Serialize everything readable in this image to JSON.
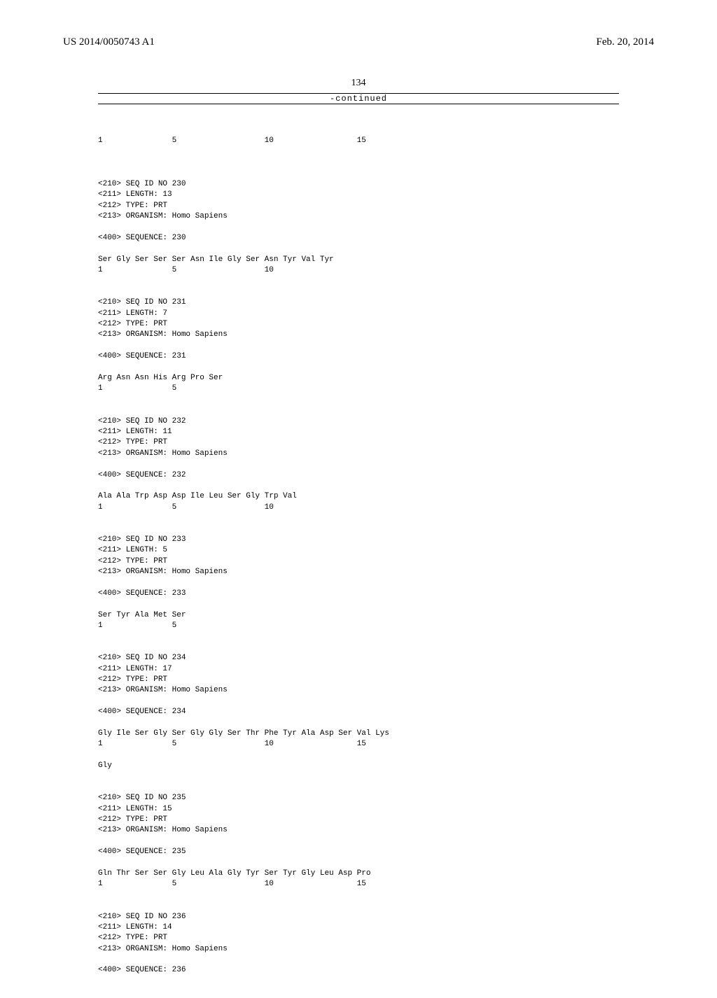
{
  "header": {
    "pub_number": "US 2014/0050743 A1",
    "pub_date": "Feb. 20, 2014"
  },
  "page_number": "134",
  "continued_label": "-continued",
  "positions_line_1": "1               5                   10                  15",
  "sequences": [
    {
      "id": "230",
      "length": "13",
      "type": "PRT",
      "organism": "Homo Sapiens",
      "seq_lines": [
        "Ser Gly Ser Ser Ser Asn Ile Gly Ser Asn Tyr Val Tyr",
        "1               5                   10"
      ]
    },
    {
      "id": "231",
      "length": "7",
      "type": "PRT",
      "organism": "Homo Sapiens",
      "seq_lines": [
        "Arg Asn Asn His Arg Pro Ser",
        "1               5"
      ]
    },
    {
      "id": "232",
      "length": "11",
      "type": "PRT",
      "organism": "Homo Sapiens",
      "seq_lines": [
        "Ala Ala Trp Asp Asp Ile Leu Ser Gly Trp Val",
        "1               5                   10"
      ]
    },
    {
      "id": "233",
      "length": "5",
      "type": "PRT",
      "organism": "Homo Sapiens",
      "seq_lines": [
        "Ser Tyr Ala Met Ser",
        "1               5"
      ]
    },
    {
      "id": "234",
      "length": "17",
      "type": "PRT",
      "organism": "Homo Sapiens",
      "seq_lines": [
        "Gly Ile Ser Gly Ser Gly Gly Ser Thr Phe Tyr Ala Asp Ser Val Lys",
        "1               5                   10                  15",
        "",
        "Gly"
      ]
    },
    {
      "id": "235",
      "length": "15",
      "type": "PRT",
      "organism": "Homo Sapiens",
      "seq_lines": [
        "Gln Thr Ser Ser Gly Leu Ala Gly Tyr Ser Tyr Gly Leu Asp Pro",
        "1               5                   10                  15"
      ]
    },
    {
      "id": "236",
      "length": "14",
      "type": "PRT",
      "organism": "Homo Sapiens",
      "seq_lines": []
    }
  ],
  "labels": {
    "seq_id": "<210> SEQ ID NO ",
    "length": "<211> LENGTH: ",
    "type": "<212> TYPE: ",
    "organism": "<213> ORGANISM: ",
    "sequence": "<400> SEQUENCE: "
  }
}
